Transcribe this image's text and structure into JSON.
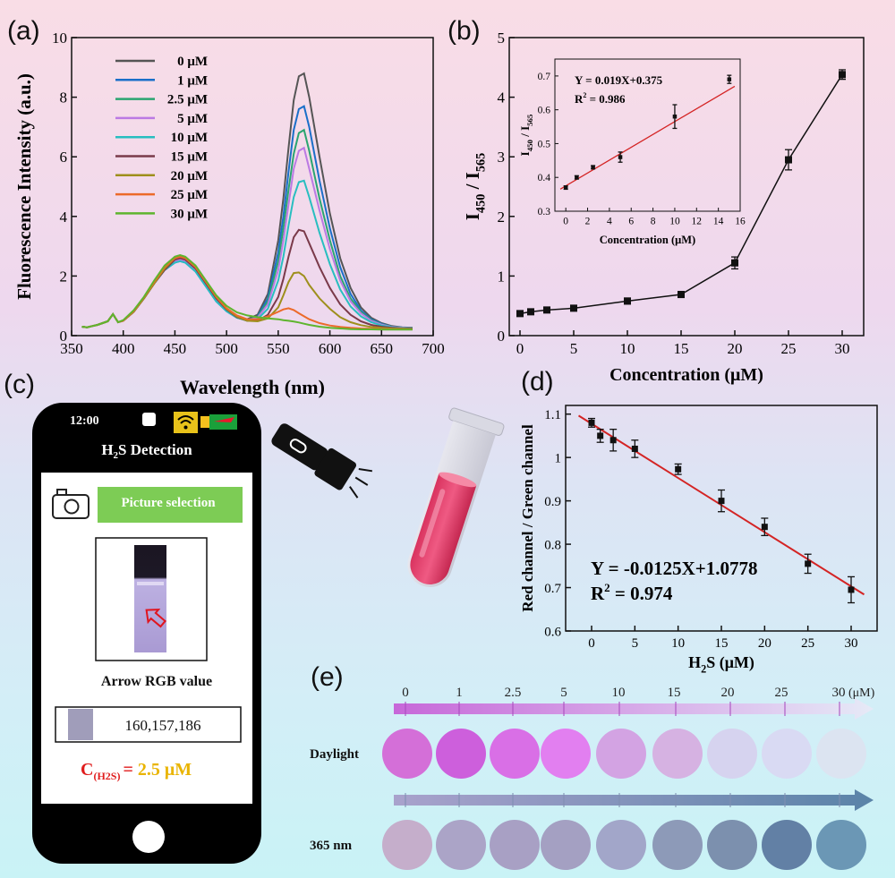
{
  "panels": {
    "a": "(a)",
    "b": "(b)",
    "c": "(c)",
    "d": "(d)",
    "e": "(e)"
  },
  "colors": {
    "fit_line": "#d42424",
    "accent_green": "#7dcc55",
    "accent_red": "#e01c1c",
    "accent_gold": "#e9b400"
  },
  "chart_data": [
    {
      "id": "a",
      "type": "line",
      "xlabel": "Wavelength (nm)",
      "ylabel": "Fluorescence Intensity (a.u.)",
      "xlim": [
        350,
        700
      ],
      "ylim": [
        0,
        10
      ],
      "xticks": [
        350,
        400,
        450,
        500,
        550,
        600,
        650,
        700
      ],
      "yticks": [
        0,
        2,
        4,
        6,
        8,
        10
      ],
      "legend_position": "top-left",
      "x": [
        360,
        365,
        370,
        375,
        380,
        385,
        390,
        395,
        400,
        410,
        420,
        430,
        440,
        450,
        455,
        460,
        470,
        480,
        490,
        500,
        510,
        520,
        530,
        540,
        550,
        555,
        560,
        565,
        570,
        575,
        580,
        590,
        600,
        610,
        620,
        630,
        640,
        650,
        660,
        670,
        680
      ],
      "series": [
        {
          "name": "0 μM",
          "color": "#555555",
          "values": [
            0.3,
            0.28,
            0.32,
            0.36,
            0.42,
            0.48,
            0.72,
            0.45,
            0.5,
            0.8,
            1.25,
            1.75,
            2.2,
            2.5,
            2.55,
            2.5,
            2.2,
            1.7,
            1.2,
            0.85,
            0.62,
            0.55,
            0.7,
            1.4,
            3.2,
            4.6,
            6.3,
            7.9,
            8.7,
            8.8,
            8.0,
            6.0,
            4.1,
            2.6,
            1.6,
            0.95,
            0.6,
            0.42,
            0.32,
            0.28,
            0.26
          ]
        },
        {
          "name": "1 μM",
          "color": "#1a6fc9",
          "values": [
            0.3,
            0.28,
            0.32,
            0.36,
            0.42,
            0.48,
            0.72,
            0.45,
            0.5,
            0.8,
            1.25,
            1.75,
            2.2,
            2.45,
            2.5,
            2.45,
            2.15,
            1.65,
            1.15,
            0.82,
            0.6,
            0.52,
            0.65,
            1.25,
            2.8,
            4.0,
            5.5,
            6.9,
            7.6,
            7.7,
            7.0,
            5.2,
            3.6,
            2.3,
            1.4,
            0.85,
            0.55,
            0.4,
            0.3,
            0.27,
            0.25
          ]
        },
        {
          "name": "2.5 μM",
          "color": "#2aa570",
          "values": [
            0.3,
            0.28,
            0.32,
            0.36,
            0.42,
            0.48,
            0.72,
            0.45,
            0.5,
            0.8,
            1.25,
            1.75,
            2.2,
            2.5,
            2.55,
            2.5,
            2.2,
            1.7,
            1.2,
            0.85,
            0.62,
            0.53,
            0.62,
            1.15,
            2.5,
            3.6,
            4.9,
            6.1,
            6.8,
            6.9,
            6.2,
            4.6,
            3.2,
            2.0,
            1.25,
            0.8,
            0.52,
            0.38,
            0.3,
            0.27,
            0.25
          ]
        },
        {
          "name": "5  μM",
          "color": "#bb7ae3",
          "values": [
            0.3,
            0.28,
            0.32,
            0.36,
            0.42,
            0.48,
            0.72,
            0.45,
            0.5,
            0.8,
            1.25,
            1.75,
            2.2,
            2.5,
            2.55,
            2.5,
            2.2,
            1.7,
            1.2,
            0.85,
            0.62,
            0.52,
            0.6,
            1.05,
            2.2,
            3.2,
            4.4,
            5.6,
            6.2,
            6.3,
            5.6,
            4.2,
            2.9,
            1.85,
            1.15,
            0.75,
            0.5,
            0.37,
            0.29,
            0.26,
            0.24
          ]
        },
        {
          "name": "10 μM",
          "color": "#28bec0",
          "values": [
            0.3,
            0.28,
            0.32,
            0.36,
            0.42,
            0.48,
            0.72,
            0.45,
            0.5,
            0.8,
            1.25,
            1.75,
            2.2,
            2.45,
            2.5,
            2.45,
            2.15,
            1.65,
            1.15,
            0.82,
            0.6,
            0.5,
            0.55,
            0.9,
            1.85,
            2.65,
            3.7,
            4.65,
            5.15,
            5.2,
            4.65,
            3.45,
            2.4,
            1.55,
            0.98,
            0.65,
            0.45,
            0.34,
            0.28,
            0.25,
            0.24
          ]
        },
        {
          "name": "15 μM",
          "color": "#7a3a4a",
          "values": [
            0.3,
            0.28,
            0.32,
            0.36,
            0.42,
            0.48,
            0.72,
            0.45,
            0.5,
            0.8,
            1.25,
            1.75,
            2.2,
            2.55,
            2.6,
            2.55,
            2.25,
            1.75,
            1.25,
            0.88,
            0.62,
            0.5,
            0.5,
            0.7,
            1.3,
            1.9,
            2.65,
            3.3,
            3.55,
            3.5,
            3.1,
            2.3,
            1.6,
            1.05,
            0.7,
            0.48,
            0.36,
            0.3,
            0.26,
            0.24,
            0.23
          ]
        },
        {
          "name": "20 μM",
          "color": "#9e8f1c",
          "values": [
            0.3,
            0.28,
            0.32,
            0.36,
            0.42,
            0.48,
            0.72,
            0.45,
            0.5,
            0.8,
            1.25,
            1.75,
            2.25,
            2.6,
            2.65,
            2.6,
            2.3,
            1.8,
            1.3,
            0.9,
            0.64,
            0.5,
            0.48,
            0.58,
            0.95,
            1.35,
            1.8,
            2.1,
            2.12,
            2.0,
            1.7,
            1.25,
            0.9,
            0.62,
            0.45,
            0.35,
            0.29,
            0.26,
            0.24,
            0.23,
            0.22
          ]
        },
        {
          "name": "25 μM",
          "color": "#ec6a2a",
          "values": [
            0.3,
            0.28,
            0.32,
            0.36,
            0.42,
            0.48,
            0.72,
            0.45,
            0.5,
            0.82,
            1.28,
            1.8,
            2.3,
            2.6,
            2.65,
            2.6,
            2.3,
            1.8,
            1.3,
            0.92,
            0.68,
            0.55,
            0.55,
            0.65,
            0.8,
            0.88,
            0.92,
            0.86,
            0.75,
            0.65,
            0.55,
            0.42,
            0.34,
            0.29,
            0.26,
            0.24,
            0.23,
            0.22,
            0.22,
            0.21,
            0.21
          ]
        },
        {
          "name": "30 μM",
          "color": "#5eb52e",
          "values": [
            0.3,
            0.28,
            0.32,
            0.36,
            0.42,
            0.48,
            0.72,
            0.45,
            0.52,
            0.85,
            1.3,
            1.85,
            2.35,
            2.65,
            2.7,
            2.65,
            2.35,
            1.85,
            1.35,
            1.0,
            0.78,
            0.68,
            0.62,
            0.58,
            0.55,
            0.52,
            0.5,
            0.47,
            0.44,
            0.4,
            0.36,
            0.3,
            0.26,
            0.24,
            0.22,
            0.21,
            0.21,
            0.2,
            0.2,
            0.2,
            0.2
          ]
        }
      ]
    },
    {
      "id": "b",
      "type": "line",
      "xlabel": "Concentration (μM)",
      "ylabel": "I450 / I565",
      "ylabel_parts": [
        "I",
        "450",
        " / I",
        "565"
      ],
      "xlim": [
        -1,
        32
      ],
      "ylim": [
        0,
        5
      ],
      "xticks": [
        0,
        5,
        10,
        15,
        20,
        25,
        30
      ],
      "yticks": [
        0,
        1,
        2,
        3,
        4,
        5
      ],
      "x": [
        0,
        1,
        2.5,
        5,
        10,
        15,
        20,
        25,
        30
      ],
      "values": [
        0.37,
        0.4,
        0.43,
        0.46,
        0.58,
        0.69,
        1.22,
        2.95,
        4.38
      ],
      "errors": [
        0.04,
        0.04,
        0.03,
        0.04,
        0.05,
        0.05,
        0.1,
        0.17,
        0.08
      ],
      "inset": {
        "type": "scatter",
        "xlabel": "Concentration (μM)",
        "ylabel_parts": [
          "I",
          "450",
          " / I",
          "565"
        ],
        "xlim": [
          -1,
          16
        ],
        "ylim": [
          0.3,
          0.75
        ],
        "xticks": [
          0,
          2,
          4,
          6,
          8,
          10,
          12,
          14,
          16
        ],
        "yticks": [
          0.3,
          0.4,
          0.5,
          0.6,
          0.7
        ],
        "x": [
          0,
          1,
          2.5,
          5,
          10,
          15
        ],
        "values": [
          0.37,
          0.4,
          0.43,
          0.46,
          0.58,
          0.69
        ],
        "errors": [
          0.005,
          0.005,
          0.005,
          0.015,
          0.035,
          0.012
        ],
        "fit": {
          "slope": 0.019,
          "intercept": 0.375,
          "x_range": [
            -0.5,
            15.5
          ]
        },
        "equation": "Y = 0.019X+0.375",
        "r2_value": "= 0.986"
      }
    },
    {
      "id": "d",
      "type": "scatter",
      "xlabel_parts": [
        "H",
        "2",
        "S (μM)"
      ],
      "ylabel": "Red channel / Green channel",
      "xlim": [
        -3,
        33
      ],
      "ylim": [
        0.6,
        1.12
      ],
      "xticks": [
        0,
        5,
        10,
        15,
        20,
        25,
        30
      ],
      "yticks": [
        0.6,
        0.7,
        0.8,
        0.9,
        1.0,
        1.1
      ],
      "x": [
        0,
        1,
        2.5,
        5,
        10,
        15,
        20,
        25,
        30
      ],
      "values": [
        1.08,
        1.05,
        1.04,
        1.02,
        0.973,
        0.9,
        0.84,
        0.755,
        0.695
      ],
      "errors": [
        0.01,
        0.015,
        0.025,
        0.02,
        0.012,
        0.025,
        0.02,
        0.022,
        0.03
      ],
      "fit": {
        "slope": -0.0125,
        "intercept": 1.0778,
        "x_range": [
          -1.5,
          31.5
        ]
      },
      "equation": "Y  = -0.0125X+1.0778",
      "r2_value": "= 0.974"
    }
  ],
  "phone": {
    "time": "12:00",
    "title_pre": "H",
    "title_sub": "2",
    "title_post": "S Detection",
    "picture_btn": "Picture selection",
    "rgb_label": "Arrow RGB value",
    "rgb_value": "160,157,186",
    "conc_c": "C",
    "conc_sub": "(H2S)",
    "conc_eq": "=",
    "conc_val": "2.5 μM"
  },
  "scale": {
    "labels": [
      "0",
      "1",
      "2.5",
      "5",
      "10",
      "15",
      "20",
      "25",
      "30"
    ],
    "unit": "(μM)",
    "daylight_label": "Daylight",
    "uv_label": "365 nm",
    "daylight_colors": [
      "#d46fd8",
      "#cd5fdc",
      "#d96fe6",
      "#e27ff0",
      "#d3a3e3",
      "#d6b2e2",
      "#d6d3ef",
      "#d9daf3",
      "#dce4f1"
    ],
    "uv_colors": [
      "#c5aecb",
      "#aba4c7",
      "#a8a0c4",
      "#a4a0c2",
      "#a2a6c9",
      "#8d9ab8",
      "#7c90ae",
      "#6280a5",
      "#6b97b5"
    ]
  }
}
